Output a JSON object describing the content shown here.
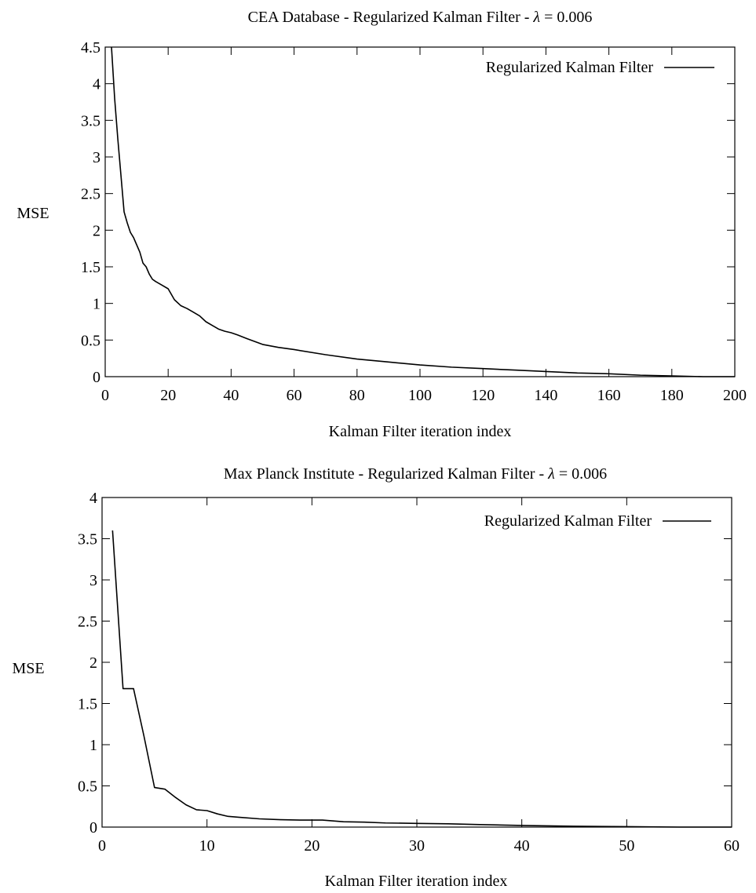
{
  "chart_data": [
    {
      "type": "line",
      "title": "CEA Database - Regularized Kalman Filter - λ = 0.006",
      "title_prefix": "CEA Database - Regularized Kalman Filter - ",
      "title_lambda": "λ",
      "title_value": " = 0.006",
      "xlabel": "Kalman Filter iteration index",
      "ylabel": "MSE",
      "xlim": [
        0,
        200
      ],
      "ylim": [
        0,
        4.5
      ],
      "xticks": [
        "0",
        "20",
        "40",
        "60",
        "80",
        "100",
        "120",
        "140",
        "160",
        "180",
        "200"
      ],
      "yticks": [
        "0",
        "0.5",
        "1",
        "1.5",
        "2",
        "2.5",
        "3",
        "3.5",
        "4",
        "4.5"
      ],
      "grid": false,
      "legend_position": "top-right",
      "series": [
        {
          "name": "Regularized Kalman Filter",
          "x": [
            2,
            3,
            4,
            5,
            6,
            7,
            8,
            9,
            10,
            11,
            12,
            13,
            14,
            15,
            16,
            18,
            20,
            22,
            24,
            26,
            28,
            30,
            32,
            34,
            36,
            38,
            40,
            42,
            45,
            50,
            55,
            60,
            70,
            80,
            90,
            100,
            110,
            120,
            130,
            140,
            150,
            160,
            170,
            180,
            190,
            200
          ],
          "y": [
            4.5,
            3.8,
            3.25,
            2.75,
            2.25,
            2.1,
            1.97,
            1.9,
            1.8,
            1.7,
            1.55,
            1.5,
            1.4,
            1.33,
            1.3,
            1.25,
            1.2,
            1.05,
            0.97,
            0.93,
            0.88,
            0.83,
            0.75,
            0.7,
            0.65,
            0.62,
            0.6,
            0.57,
            0.52,
            0.44,
            0.4,
            0.37,
            0.3,
            0.24,
            0.2,
            0.16,
            0.13,
            0.11,
            0.09,
            0.07,
            0.05,
            0.04,
            0.02,
            0.01,
            0.0,
            0.0
          ]
        }
      ]
    },
    {
      "type": "line",
      "title": "Max Planck Institute - Regularized Kalman Filter - λ = 0.006",
      "title_prefix": "Max Planck Institute - Regularized Kalman Filter - ",
      "title_lambda": "λ",
      "title_value": " = 0.006",
      "xlabel": "Kalman Filter iteration index",
      "ylabel": "MSE",
      "xlim": [
        0,
        60
      ],
      "ylim": [
        0,
        4
      ],
      "xticks": [
        "0",
        "10",
        "20",
        "30",
        "40",
        "50",
        "60"
      ],
      "yticks": [
        "0",
        "0.5",
        "1",
        "1.5",
        "2",
        "2.5",
        "3",
        "3.5",
        "4"
      ],
      "grid": false,
      "legend_position": "top-right",
      "series": [
        {
          "name": "Regularized Kalman Filter",
          "x": [
            1,
            2,
            3,
            4,
            5,
            6,
            7,
            8,
            9,
            10,
            11,
            12,
            13,
            15,
            17,
            19,
            21,
            23,
            25,
            27,
            30,
            33,
            36,
            40,
            45,
            50,
            55,
            60
          ],
          "y": [
            3.6,
            1.68,
            1.68,
            1.1,
            0.48,
            0.46,
            0.36,
            0.27,
            0.21,
            0.2,
            0.16,
            0.13,
            0.12,
            0.1,
            0.09,
            0.085,
            0.085,
            0.065,
            0.06,
            0.05,
            0.045,
            0.04,
            0.03,
            0.02,
            0.01,
            0.005,
            0.0,
            0.0
          ]
        }
      ]
    }
  ]
}
